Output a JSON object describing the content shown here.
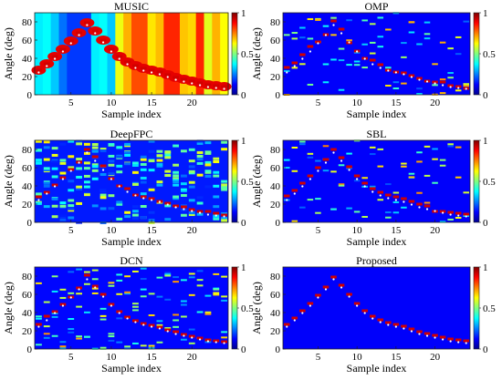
{
  "figure": {
    "colormap": [
      "#00008f",
      "#0000ff",
      "#007fff",
      "#00ffff",
      "#7fff7f",
      "#ffff00",
      "#ff7f00",
      "#ff0000",
      "#7f0000"
    ]
  },
  "chart_data": [
    {
      "type": "heatmap",
      "title": "MUSIC",
      "xlabel": "Sample index",
      "ylabel": "Angle (deg)",
      "xlim": [
        1,
        24
      ],
      "ylim": [
        0,
        90
      ],
      "xticks": [
        5,
        10,
        15,
        20
      ],
      "yticks": [
        0,
        20,
        40,
        60,
        80
      ],
      "colorbar_ticks": [
        0,
        0.5,
        1
      ],
      "background": "spectrum",
      "true_angles": [
        27,
        34,
        42,
        50,
        59,
        68,
        79,
        70,
        60,
        50,
        42,
        36,
        32,
        29,
        27,
        25,
        22,
        19,
        17,
        15,
        13,
        11,
        10,
        9
      ],
      "estimates": [
        [
          1,
          27
        ],
        [
          2,
          34
        ],
        [
          3,
          42
        ],
        [
          4,
          50
        ],
        [
          5,
          59
        ],
        [
          6,
          68
        ],
        [
          7,
          79
        ],
        [
          8,
          70
        ],
        [
          9,
          60
        ],
        [
          10,
          50
        ],
        [
          11,
          42
        ],
        [
          12,
          36
        ],
        [
          13,
          32
        ],
        [
          14,
          29
        ],
        [
          15,
          27
        ],
        [
          16,
          25
        ],
        [
          17,
          22
        ],
        [
          18,
          19
        ],
        [
          19,
          17
        ],
        [
          20,
          15
        ],
        [
          21,
          13
        ],
        [
          22,
          11
        ],
        [
          23,
          10
        ],
        [
          24,
          9
        ]
      ]
    },
    {
      "type": "heatmap",
      "title": "OMP",
      "xlabel": "Sample index",
      "ylabel": "Angle (deg)",
      "xlim": [
        1,
        24
      ],
      "ylim": [
        0,
        90
      ],
      "xticks": [
        5,
        10,
        15,
        20
      ],
      "yticks": [
        0,
        20,
        40,
        60,
        80
      ],
      "colorbar_ticks": [
        0,
        0.5,
        1
      ],
      "background": "sparse",
      "true_angles": [
        27,
        34,
        42,
        50,
        59,
        68,
        79,
        70,
        60,
        50,
        42,
        36,
        32,
        29,
        27,
        25,
        22,
        19,
        17,
        15,
        13,
        11,
        10,
        9
      ],
      "estimates": [
        [
          1,
          30
        ],
        [
          2,
          35
        ],
        [
          3,
          44
        ],
        [
          4,
          53
        ],
        [
          5,
          58
        ],
        [
          6,
          66
        ],
        [
          7,
          81
        ],
        [
          8,
          72
        ],
        [
          9,
          57
        ],
        [
          10,
          48
        ],
        [
          11,
          40
        ],
        [
          12,
          38
        ],
        [
          13,
          33
        ],
        [
          14,
          27
        ],
        [
          15,
          25
        ],
        [
          16,
          24
        ],
        [
          17,
          21
        ],
        [
          18,
          18
        ],
        [
          19,
          15
        ],
        [
          20,
          14
        ],
        [
          21,
          14
        ],
        [
          22,
          10
        ],
        [
          23,
          9
        ],
        [
          24,
          7
        ]
      ]
    },
    {
      "type": "heatmap",
      "title": "DeepFPC",
      "xlabel": "Sample index",
      "ylabel": "Angle (deg)",
      "xlim": [
        1,
        24
      ],
      "ylim": [
        0,
        90
      ],
      "xticks": [
        5,
        10,
        15,
        20
      ],
      "yticks": [
        0,
        20,
        40,
        60,
        80
      ],
      "colorbar_ticks": [
        0,
        0.5,
        1
      ],
      "background": "dense",
      "true_angles": [
        27,
        34,
        42,
        50,
        59,
        68,
        79,
        70,
        60,
        50,
        42,
        36,
        32,
        29,
        27,
        25,
        22,
        19,
        17,
        15,
        13,
        11,
        10,
        9
      ],
      "estimates": [
        [
          1,
          28
        ],
        [
          2,
          33
        ],
        [
          3,
          41
        ],
        [
          4,
          49
        ],
        [
          5,
          58
        ],
        [
          6,
          66
        ],
        [
          7,
          80
        ],
        [
          8,
          72
        ],
        [
          9,
          62
        ],
        [
          10,
          48
        ],
        [
          11,
          40
        ],
        [
          12,
          37
        ],
        [
          13,
          30
        ],
        [
          14,
          28
        ],
        [
          15,
          26
        ],
        [
          16,
          23
        ],
        [
          17,
          21
        ],
        [
          18,
          18
        ],
        [
          19,
          17
        ],
        [
          20,
          14
        ],
        [
          21,
          12
        ],
        [
          22,
          12
        ],
        [
          23,
          10
        ],
        [
          24,
          8
        ]
      ]
    },
    {
      "type": "heatmap",
      "title": "SBL",
      "xlabel": "Sample index",
      "ylabel": "Angle (deg)",
      "xlim": [
        1,
        24
      ],
      "ylim": [
        0,
        90
      ],
      "xticks": [
        5,
        10,
        15,
        20
      ],
      "yticks": [
        0,
        20,
        40,
        60,
        80
      ],
      "colorbar_ticks": [
        0,
        0.5,
        1
      ],
      "background": "sparse",
      "true_angles": [
        27,
        34,
        42,
        50,
        59,
        68,
        79,
        70,
        60,
        50,
        42,
        36,
        32,
        29,
        27,
        25,
        22,
        19,
        17,
        15,
        13,
        11,
        10,
        9
      ],
      "estimates": [
        [
          1,
          29
        ],
        [
          2,
          35
        ],
        [
          3,
          43
        ],
        [
          4,
          51
        ],
        [
          5,
          60
        ],
        [
          6,
          69
        ],
        [
          7,
          80
        ],
        [
          8,
          71
        ],
        [
          9,
          61
        ],
        [
          10,
          51
        ],
        [
          11,
          43
        ],
        [
          12,
          37
        ],
        [
          13,
          33
        ],
        [
          14,
          30
        ],
        [
          15,
          28
        ],
        [
          16,
          26
        ],
        [
          17,
          23
        ],
        [
          18,
          20
        ],
        [
          19,
          18
        ],
        [
          20,
          12
        ],
        [
          21,
          12
        ],
        [
          22,
          11
        ],
        [
          23,
          10
        ],
        [
          24,
          9
        ]
      ]
    },
    {
      "type": "heatmap",
      "title": "DCN",
      "xlabel": "Sample index",
      "ylabel": "Angle (deg)",
      "xlim": [
        1,
        24
      ],
      "ylim": [
        0,
        90
      ],
      "xticks": [
        5,
        10,
        15,
        20
      ],
      "yticks": [
        0,
        20,
        40,
        60,
        80
      ],
      "colorbar_ticks": [
        0,
        0.5,
        1
      ],
      "background": "medium",
      "true_angles": [
        27,
        34,
        42,
        50,
        59,
        68,
        79,
        70,
        60,
        50,
        42,
        36,
        32,
        29,
        27,
        25,
        22,
        19,
        17,
        15,
        13,
        11,
        10,
        9
      ],
      "estimates": [
        [
          1,
          27
        ],
        [
          2,
          36
        ],
        [
          3,
          41
        ],
        [
          4,
          49
        ],
        [
          5,
          57
        ],
        [
          6,
          67
        ],
        [
          7,
          81
        ],
        [
          8,
          69
        ],
        [
          9,
          60
        ],
        [
          10,
          49
        ],
        [
          11,
          41
        ],
        [
          12,
          35
        ],
        [
          13,
          31
        ],
        [
          14,
          28
        ],
        [
          15,
          26
        ],
        [
          16,
          24
        ],
        [
          17,
          21
        ],
        [
          18,
          19
        ],
        [
          19,
          16
        ],
        [
          20,
          14
        ],
        [
          21,
          12
        ],
        [
          22,
          10
        ],
        [
          23,
          9
        ],
        [
          24,
          8
        ]
      ]
    },
    {
      "type": "heatmap",
      "title": "Proposed",
      "xlabel": "Sample index",
      "ylabel": "Angle (deg)",
      "xlim": [
        1,
        24
      ],
      "ylim": [
        0,
        90
      ],
      "xticks": [
        5,
        10,
        15,
        20
      ],
      "yticks": [
        0,
        20,
        40,
        60,
        80
      ],
      "colorbar_ticks": [
        0,
        0.5,
        1
      ],
      "background": "clean",
      "true_angles": [
        27,
        34,
        42,
        50,
        59,
        68,
        79,
        70,
        60,
        50,
        42,
        36,
        32,
        29,
        27,
        25,
        22,
        19,
        17,
        15,
        13,
        11,
        10,
        9
      ],
      "estimates": [
        [
          1,
          27
        ],
        [
          2,
          34
        ],
        [
          3,
          42
        ],
        [
          4,
          50
        ],
        [
          5,
          59
        ],
        [
          6,
          68
        ],
        [
          7,
          79
        ],
        [
          8,
          70
        ],
        [
          9,
          60
        ],
        [
          10,
          50
        ],
        [
          11,
          42
        ],
        [
          12,
          36
        ],
        [
          13,
          32
        ],
        [
          14,
          29
        ],
        [
          15,
          27
        ],
        [
          16,
          25
        ],
        [
          17,
          22
        ],
        [
          18,
          19
        ],
        [
          19,
          17
        ],
        [
          20,
          15
        ],
        [
          21,
          13
        ],
        [
          22,
          11
        ],
        [
          23,
          10
        ],
        [
          24,
          9
        ]
      ]
    }
  ]
}
